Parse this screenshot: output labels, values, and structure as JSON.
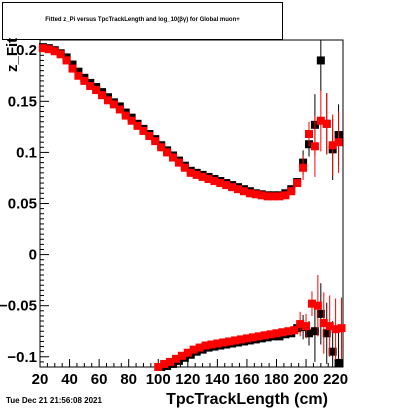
{
  "chart_data": {
    "type": "scatter",
    "title": "Fitted z_Pi versus TpcTrackLength and log_10(βγ) for Global muon+",
    "xlabel": "TpcTrackLength (cm)",
    "ylabel": "z_Fit",
    "xlim": [
      20,
      225
    ],
    "ylim": [
      -0.11,
      0.21
    ],
    "x_ticks": [
      "20",
      "40",
      "60",
      "80",
      "100",
      "120",
      "140",
      "160",
      "180",
      "200",
      "220"
    ],
    "y_ticks": [
      "−0.1",
      "−0.05",
      "0",
      "0.05",
      "0.1",
      "0.15",
      "0.2"
    ],
    "x_tick_values": [
      20,
      40,
      60,
      80,
      100,
      120,
      140,
      160,
      180,
      200,
      220
    ],
    "y_tick_values": [
      -0.1,
      -0.05,
      0,
      0.05,
      0.1,
      0.15,
      0.2
    ],
    "grid": false,
    "series": [
      {
        "color": "#000000",
        "marker": "square",
        "upper": [
          [
            22,
            0.203
          ],
          [
            26,
            0.202
          ],
          [
            30,
            0.2
          ],
          [
            34,
            0.197
          ],
          [
            38,
            0.193
          ],
          [
            42,
            0.186
          ],
          [
            46,
            0.179
          ],
          [
            50,
            0.173
          ],
          [
            54,
            0.168
          ],
          [
            58,
            0.164
          ],
          [
            62,
            0.159
          ],
          [
            66,
            0.154
          ],
          [
            70,
            0.149
          ],
          [
            74,
            0.145
          ],
          [
            78,
            0.139
          ],
          [
            82,
            0.134
          ],
          [
            86,
            0.128
          ],
          [
            90,
            0.123
          ],
          [
            94,
            0.118
          ],
          [
            98,
            0.113
          ],
          [
            102,
            0.107
          ],
          [
            106,
            0.102
          ],
          [
            110,
            0.097
          ],
          [
            114,
            0.092
          ],
          [
            118,
            0.087
          ],
          [
            122,
            0.082
          ],
          [
            126,
            0.08
          ],
          [
            130,
            0.078
          ],
          [
            134,
            0.076
          ],
          [
            138,
            0.074
          ],
          [
            142,
            0.072
          ],
          [
            146,
            0.07
          ],
          [
            150,
            0.068
          ],
          [
            154,
            0.066
          ],
          [
            158,
            0.064
          ],
          [
            162,
            0.062
          ],
          [
            166,
            0.06
          ],
          [
            170,
            0.059
          ],
          [
            174,
            0.058
          ],
          [
            178,
            0.058
          ],
          [
            182,
            0.058
          ],
          [
            186,
            0.06
          ],
          [
            190,
            0.064
          ],
          [
            194,
            0.071
          ],
          [
            198,
            0.09
          ],
          [
            202,
            0.108
          ],
          [
            206,
            0.127
          ],
          [
            210,
            0.19
          ],
          [
            214,
            0.128
          ],
          [
            218,
            0.103
          ],
          [
            222,
            0.117
          ]
        ],
        "lower": [
          [
            102,
            -0.11
          ],
          [
            106,
            -0.109
          ],
          [
            110,
            -0.107
          ],
          [
            114,
            -0.104
          ],
          [
            118,
            -0.101
          ],
          [
            122,
            -0.098
          ],
          [
            126,
            -0.095
          ],
          [
            130,
            -0.093
          ],
          [
            134,
            -0.091
          ],
          [
            138,
            -0.09
          ],
          [
            142,
            -0.089
          ],
          [
            146,
            -0.088
          ],
          [
            150,
            -0.087
          ],
          [
            154,
            -0.086
          ],
          [
            158,
            -0.085
          ],
          [
            162,
            -0.084
          ],
          [
            166,
            -0.083
          ],
          [
            170,
            -0.082
          ],
          [
            174,
            -0.081
          ],
          [
            178,
            -0.08
          ],
          [
            182,
            -0.08
          ],
          [
            186,
            -0.078
          ],
          [
            190,
            -0.077
          ],
          [
            194,
            -0.072
          ],
          [
            198,
            -0.071
          ],
          [
            202,
            -0.077
          ],
          [
            206,
            -0.075
          ],
          [
            210,
            -0.058
          ],
          [
            214,
            -0.077
          ],
          [
            218,
            -0.095
          ],
          [
            222,
            -0.106
          ]
        ]
      },
      {
        "color": "#ff0000",
        "marker": "square",
        "upper": [
          [
            22,
            0.202
          ],
          [
            26,
            0.201
          ],
          [
            30,
            0.199
          ],
          [
            34,
            0.196
          ],
          [
            38,
            0.19
          ],
          [
            42,
            0.182
          ],
          [
            46,
            0.175
          ],
          [
            50,
            0.17
          ],
          [
            54,
            0.165
          ],
          [
            58,
            0.161
          ],
          [
            62,
            0.156
          ],
          [
            66,
            0.151
          ],
          [
            70,
            0.147
          ],
          [
            74,
            0.142
          ],
          [
            78,
            0.136
          ],
          [
            82,
            0.131
          ],
          [
            86,
            0.126
          ],
          [
            90,
            0.121
          ],
          [
            94,
            0.116
          ],
          [
            98,
            0.111
          ],
          [
            102,
            0.105
          ],
          [
            106,
            0.1
          ],
          [
            110,
            0.095
          ],
          [
            114,
            0.09
          ],
          [
            118,
            0.085
          ],
          [
            122,
            0.08
          ],
          [
            126,
            0.078
          ],
          [
            130,
            0.076
          ],
          [
            134,
            0.074
          ],
          [
            138,
            0.072
          ],
          [
            142,
            0.07
          ],
          [
            146,
            0.068
          ],
          [
            150,
            0.066
          ],
          [
            154,
            0.064
          ],
          [
            158,
            0.062
          ],
          [
            162,
            0.06
          ],
          [
            166,
            0.059
          ],
          [
            170,
            0.058
          ],
          [
            174,
            0.057
          ],
          [
            178,
            0.057
          ],
          [
            182,
            0.057
          ],
          [
            186,
            0.058
          ],
          [
            190,
            0.062
          ],
          [
            194,
            0.07
          ],
          [
            198,
            0.085
          ],
          [
            202,
            0.118
          ],
          [
            206,
            0.106
          ],
          [
            210,
            0.131
          ],
          [
            214,
            0.128
          ],
          [
            218,
            0.107
          ],
          [
            222,
            0.11
          ]
        ],
        "lower": [
          [
            100,
            -0.11
          ],
          [
            104,
            -0.107
          ],
          [
            108,
            -0.105
          ],
          [
            112,
            -0.102
          ],
          [
            116,
            -0.099
          ],
          [
            120,
            -0.096
          ],
          [
            124,
            -0.093
          ],
          [
            128,
            -0.091
          ],
          [
            132,
            -0.089
          ],
          [
            136,
            -0.088
          ],
          [
            140,
            -0.087
          ],
          [
            144,
            -0.086
          ],
          [
            148,
            -0.085
          ],
          [
            152,
            -0.084
          ],
          [
            156,
            -0.083
          ],
          [
            160,
            -0.082
          ],
          [
            164,
            -0.081
          ],
          [
            168,
            -0.08
          ],
          [
            172,
            -0.079
          ],
          [
            176,
            -0.078
          ],
          [
            180,
            -0.077
          ],
          [
            184,
            -0.076
          ],
          [
            188,
            -0.075
          ],
          [
            192,
            -0.074
          ],
          [
            196,
            -0.068
          ],
          [
            200,
            -0.07
          ],
          [
            204,
            -0.048
          ],
          [
            208,
            -0.05
          ],
          [
            212,
            -0.067
          ],
          [
            216,
            -0.07
          ],
          [
            220,
            -0.073
          ],
          [
            224,
            -0.072
          ]
        ]
      }
    ]
  },
  "datestamp": "Tue Dec 21 21:56:08 2021"
}
